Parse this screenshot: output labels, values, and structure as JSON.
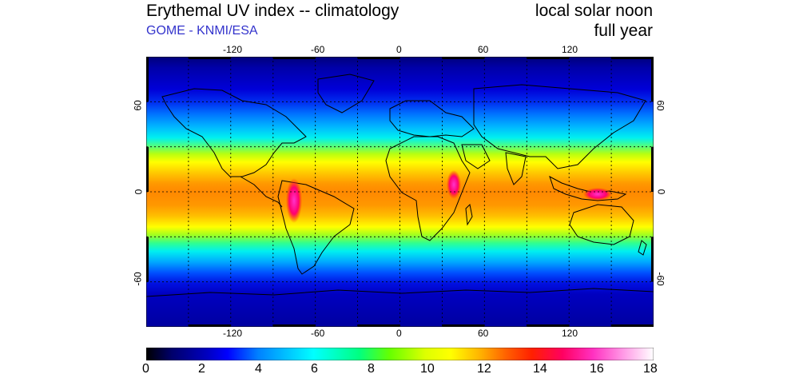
{
  "header": {
    "title": "Erythemal UV index -- climatology",
    "subtitle": "GOME - KNMI/ESA",
    "right_line1": "local solar noon",
    "right_line2": "full year"
  },
  "map": {
    "lon_ticks": [
      "-120",
      "-60",
      "0",
      "60",
      "120"
    ],
    "lat_ticks": [
      "60",
      "0",
      "-60"
    ],
    "grid": true,
    "projection": "equirectangular"
  },
  "colorbar": {
    "ticks": [
      "0",
      "2",
      "4",
      "6",
      "8",
      "10",
      "12",
      "14",
      "16",
      "18"
    ],
    "min": 0,
    "max": 18
  },
  "colors": {
    "scale": [
      "#000000",
      "#00007f",
      "#0000e0",
      "#0080ff",
      "#00ffff",
      "#33ff66",
      "#aaff00",
      "#ffff00",
      "#ffc000",
      "#ff7700",
      "#ff2000",
      "#ff0070",
      "#ff33cc",
      "#ffffff"
    ]
  }
}
